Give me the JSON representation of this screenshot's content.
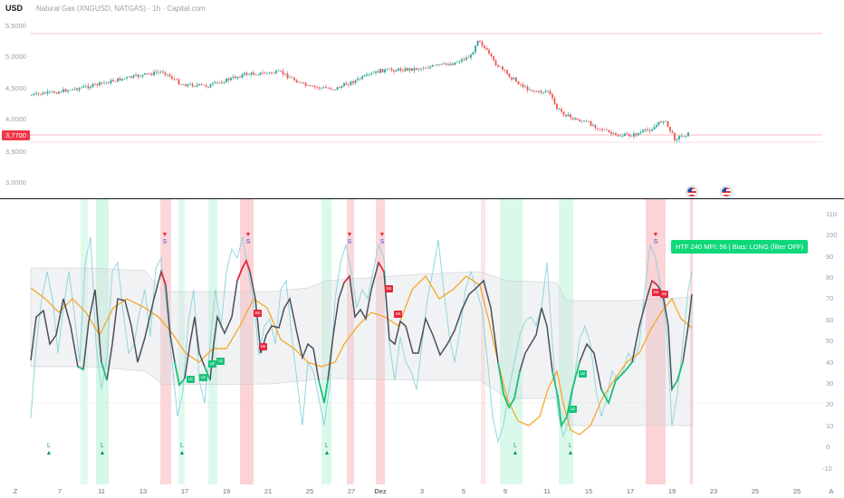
{
  "header": {
    "currency": "USD",
    "title": "Natural Gas (XNGUSD, NATGAS) · 1h · Capital.com"
  },
  "price_axis": {
    "labels": [
      "5,5000",
      "5,0000",
      "4,5000",
      "4,0000",
      "3,5000",
      "3,0000"
    ],
    "current_price": "3,7700"
  },
  "indicator_axis": {
    "labels": [
      "110",
      "100",
      "90",
      "80",
      "70",
      "60",
      "50",
      "40",
      "30",
      "20",
      "10",
      "0",
      "-10"
    ]
  },
  "htf_label": "HTF 240 MFI: 56 | Bias: LONG (filter OFF)",
  "time_axis": {
    "labels": [
      "7",
      "11",
      "13",
      "17",
      "19",
      "21",
      "25",
      "27",
      "Dez",
      "3",
      "5",
      "9",
      "11",
      "15",
      "17",
      "19",
      "23",
      "25",
      "25"
    ],
    "left_icon_label": "Z",
    "right_icon_label": "A"
  },
  "signals": {
    "long_label": "L",
    "short_label": "S",
    "long_tags": [
      "LE",
      "LE",
      "LE",
      "LE",
      "LE",
      "LE"
    ],
    "short_tags": [
      "SE",
      "SE",
      "SE",
      "SE",
      "SE",
      "SE"
    ]
  },
  "colors": {
    "bull_candle": "#26a69a",
    "bear_candle": "#ef5350",
    "mfi_line": "#4a4f5a",
    "signal_line": "#f7a21b",
    "fast_line": "#8fd7dd",
    "long_zone": "#0fd87a",
    "short_zone": "#f23645"
  }
}
